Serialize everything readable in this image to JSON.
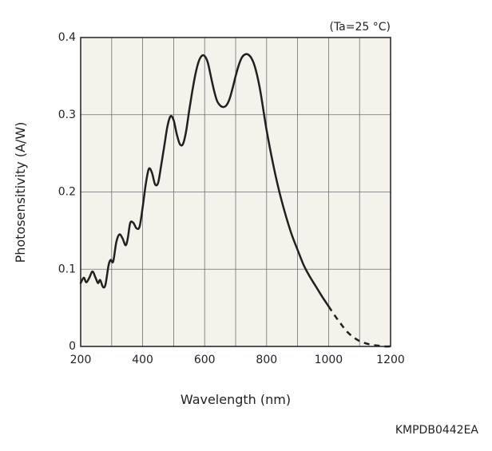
{
  "chart_data": {
    "type": "line",
    "title": "",
    "condition": "(Ta=25 °C)",
    "xlabel": "Wavelength (nm)",
    "ylabel": "Photosensitivity (A/W)",
    "xlim": [
      200,
      1200
    ],
    "ylim": [
      0,
      0.4
    ],
    "x_grid_step": 100,
    "y_grid_step": 0.1,
    "x_ticks": [
      200,
      400,
      600,
      800,
      1000,
      1200
    ],
    "x_tick_labels": [
      "200",
      "400",
      "600",
      "800",
      "1000",
      "1200"
    ],
    "y_ticks": [
      0,
      0.1,
      0.2,
      0.3,
      0.4
    ],
    "y_tick_labels": [
      "0",
      "0.1",
      "0.2",
      "0.3",
      "0.4"
    ],
    "grid": true,
    "plot_background": "#f4f2ea",
    "line_color": "#231f20",
    "series": [
      {
        "style": "solid",
        "points": [
          [
            200,
            0.082
          ],
          [
            210,
            0.089
          ],
          [
            218,
            0.083
          ],
          [
            228,
            0.089
          ],
          [
            238,
            0.097
          ],
          [
            248,
            0.089
          ],
          [
            256,
            0.082
          ],
          [
            263,
            0.086
          ],
          [
            272,
            0.077
          ],
          [
            280,
            0.08
          ],
          [
            290,
            0.105
          ],
          [
            297,
            0.112
          ],
          [
            305,
            0.11
          ],
          [
            315,
            0.135
          ],
          [
            325,
            0.145
          ],
          [
            335,
            0.14
          ],
          [
            345,
            0.131
          ],
          [
            352,
            0.14
          ],
          [
            360,
            0.16
          ],
          [
            370,
            0.16
          ],
          [
            380,
            0.153
          ],
          [
            390,
            0.155
          ],
          [
            400,
            0.18
          ],
          [
            410,
            0.21
          ],
          [
            420,
            0.23
          ],
          [
            430,
            0.225
          ],
          [
            440,
            0.21
          ],
          [
            450,
            0.212
          ],
          [
            460,
            0.235
          ],
          [
            470,
            0.26
          ],
          [
            480,
            0.285
          ],
          [
            490,
            0.298
          ],
          [
            500,
            0.293
          ],
          [
            510,
            0.275
          ],
          [
            520,
            0.262
          ],
          [
            530,
            0.262
          ],
          [
            540,
            0.278
          ],
          [
            550,
            0.305
          ],
          [
            560,
            0.33
          ],
          [
            570,
            0.352
          ],
          [
            580,
            0.368
          ],
          [
            590,
            0.376
          ],
          [
            600,
            0.376
          ],
          [
            610,
            0.368
          ],
          [
            620,
            0.35
          ],
          [
            630,
            0.332
          ],
          [
            640,
            0.318
          ],
          [
            650,
            0.312
          ],
          [
            660,
            0.31
          ],
          [
            670,
            0.312
          ],
          [
            680,
            0.32
          ],
          [
            690,
            0.334
          ],
          [
            700,
            0.35
          ],
          [
            710,
            0.364
          ],
          [
            720,
            0.374
          ],
          [
            730,
            0.378
          ],
          [
            740,
            0.378
          ],
          [
            750,
            0.374
          ],
          [
            760,
            0.365
          ],
          [
            770,
            0.35
          ],
          [
            780,
            0.33
          ],
          [
            790,
            0.305
          ],
          [
            800,
            0.28
          ],
          [
            820,
            0.238
          ],
          [
            840,
            0.202
          ],
          [
            860,
            0.172
          ],
          [
            880,
            0.146
          ],
          [
            900,
            0.125
          ],
          [
            920,
            0.105
          ],
          [
            940,
            0.09
          ],
          [
            960,
            0.077
          ],
          [
            980,
            0.064
          ],
          [
            1000,
            0.052
          ]
        ]
      },
      {
        "style": "dashed",
        "points": [
          [
            1000,
            0.052
          ],
          [
            1020,
            0.04
          ],
          [
            1040,
            0.029
          ],
          [
            1060,
            0.019
          ],
          [
            1080,
            0.012
          ],
          [
            1100,
            0.007
          ],
          [
            1120,
            0.004
          ],
          [
            1140,
            0.002
          ],
          [
            1160,
            0.001
          ],
          [
            1180,
            0.0
          ],
          [
            1200,
            0.0
          ]
        ]
      }
    ],
    "figure_code": "KMPDB0442EA"
  }
}
